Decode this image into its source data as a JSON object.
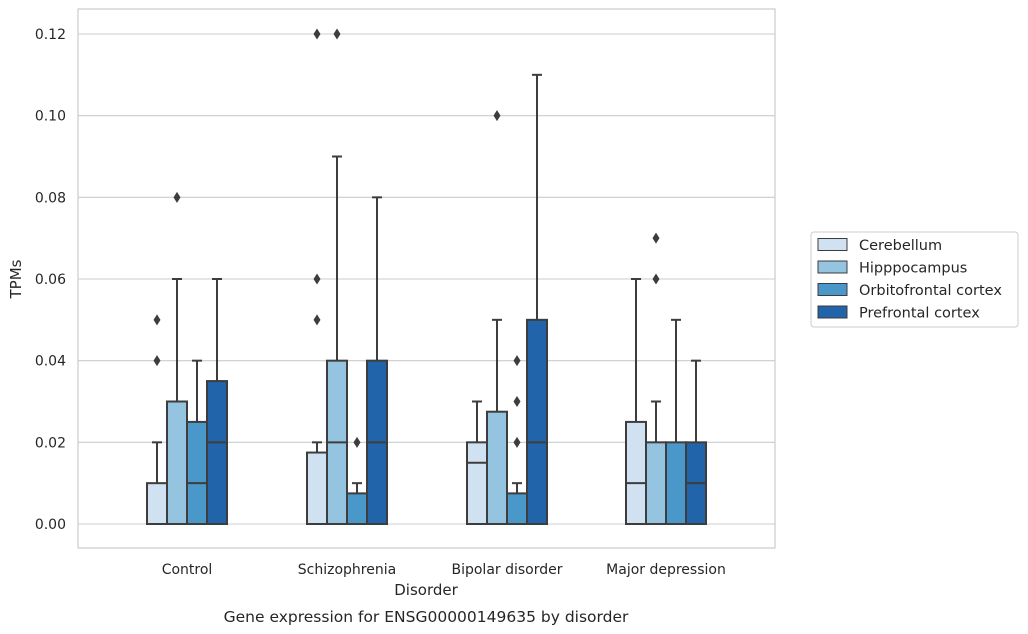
{
  "chart_data": {
    "type": "box",
    "xlabel": "Disorder",
    "ylabel": "TPMs",
    "caption": "Gene expression for ENSG00000149635 by disorder",
    "categories": [
      "Control",
      "Schizophrenia",
      "Bipolar disorder",
      "Major depression"
    ],
    "ylim": [
      -0.006,
      0.126
    ],
    "yticks": [
      "0.00",
      "0.02",
      "0.04",
      "0.06",
      "0.08",
      "0.10",
      "0.12"
    ],
    "grid": "horizontal",
    "legend_position": "center-right, outside plot",
    "series": [
      {
        "name": "Cerebellum",
        "color": "#d0e1f2",
        "boxes": [
          {
            "whislo": 0.0,
            "q1": 0.0,
            "med": 0.0,
            "q3": 0.01,
            "whishi": 0.02,
            "fliers": [
              0.04,
              0.05
            ]
          },
          {
            "whislo": 0.0,
            "q1": 0.0,
            "med": 0.0,
            "q3": 0.0175,
            "whishi": 0.02,
            "fliers": [
              0.05,
              0.06,
              0.12
            ]
          },
          {
            "whislo": 0.0,
            "q1": 0.0,
            "med": 0.015,
            "q3": 0.02,
            "whishi": 0.03,
            "fliers": []
          },
          {
            "whislo": 0.0,
            "q1": 0.0,
            "med": 0.01,
            "q3": 0.025,
            "whishi": 0.06,
            "fliers": []
          }
        ]
      },
      {
        "name": "Hipppocampus",
        "color": "#94c4df",
        "boxes": [
          {
            "whislo": 0.0,
            "q1": 0.0,
            "med": 0.0,
            "q3": 0.03,
            "whishi": 0.06,
            "fliers": [
              0.08
            ]
          },
          {
            "whislo": 0.0,
            "q1": 0.0,
            "med": 0.02,
            "q3": 0.04,
            "whishi": 0.09,
            "fliers": [
              0.12
            ]
          },
          {
            "whislo": 0.0,
            "q1": 0.0,
            "med": 0.0,
            "q3": 0.0275,
            "whishi": 0.05,
            "fliers": [
              0.1
            ]
          },
          {
            "whislo": 0.0,
            "q1": 0.0,
            "med": 0.0,
            "q3": 0.02,
            "whishi": 0.03,
            "fliers": [
              0.06,
              0.07
            ]
          }
        ]
      },
      {
        "name": "Orbitofrontal cortex",
        "color": "#4a98c9",
        "boxes": [
          {
            "whislo": 0.0,
            "q1": 0.0,
            "med": 0.01,
            "q3": 0.025,
            "whishi": 0.04,
            "fliers": []
          },
          {
            "whislo": 0.0,
            "q1": 0.0,
            "med": 0.0,
            "q3": 0.0075,
            "whishi": 0.01,
            "fliers": [
              0.02
            ]
          },
          {
            "whislo": 0.0,
            "q1": 0.0,
            "med": 0.0,
            "q3": 0.0075,
            "whishi": 0.01,
            "fliers": [
              0.02,
              0.03,
              0.04
            ]
          },
          {
            "whislo": 0.0,
            "q1": 0.0,
            "med": 0.0,
            "q3": 0.02,
            "whishi": 0.05,
            "fliers": []
          }
        ]
      },
      {
        "name": "Prefrontal cortex",
        "color": "#2264a9",
        "boxes": [
          {
            "whislo": 0.0,
            "q1": 0.0,
            "med": 0.02,
            "q3": 0.035,
            "whishi": 0.06,
            "fliers": []
          },
          {
            "whislo": 0.0,
            "q1": 0.0,
            "med": 0.02,
            "q3": 0.04,
            "whishi": 0.08,
            "fliers": []
          },
          {
            "whislo": 0.0,
            "q1": 0.0,
            "med": 0.02,
            "q3": 0.05,
            "whishi": 0.11,
            "fliers": []
          },
          {
            "whislo": 0.0,
            "q1": 0.0,
            "med": 0.01,
            "q3": 0.02,
            "whishi": 0.04,
            "fliers": []
          }
        ]
      }
    ]
  }
}
